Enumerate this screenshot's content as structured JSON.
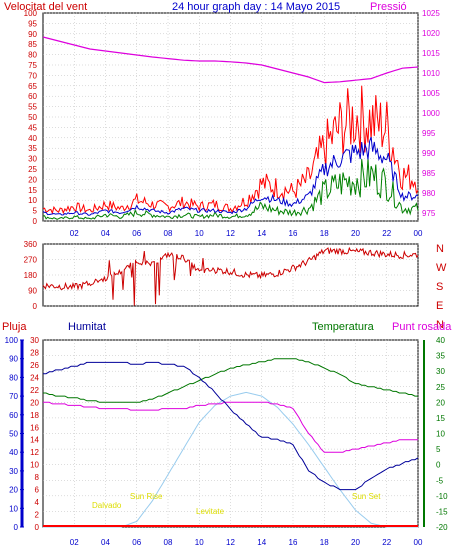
{
  "header": {
    "title": "24 hour graph day : 14 Mayo 2015",
    "top_left_label": "Velocitat del vent",
    "top_right_label": "Pressió"
  },
  "labels_bottom": {
    "pluja": "Pluja",
    "humitat": "Humitat",
    "temperatura": "Temperatura",
    "punt_rosada": "Punt rosada",
    "sun_events": [
      "Dalvado",
      "Sun Rise",
      "Levitate",
      "Sun Set"
    ]
  },
  "colors": {
    "wind_gust": "#ff0000",
    "wind_avg": "#0000cc",
    "wind_low": "#008000",
    "pressure": "#dd00dd",
    "direction": "#cc0000",
    "humidity": "#000099",
    "temperature": "#007700",
    "dewpoint": "#dd00dd",
    "solar": "#99ccee",
    "rain_axis": "#0000cc",
    "sun_label": "#dddd00",
    "grid": "#bbbbbb"
  },
  "chart_data": [
    {
      "type": "line",
      "name": "wind",
      "title": "Velocitat del vent",
      "x_ticks": [
        "02",
        "04",
        "06",
        "08",
        "10",
        "12",
        "14",
        "16",
        "18",
        "20",
        "22",
        "00"
      ],
      "left_ticks": [
        "0",
        "5",
        "10",
        "15",
        "20",
        "25",
        "30",
        "35",
        "40",
        "45",
        "50",
        "55",
        "60",
        "65",
        "70",
        "75",
        "80",
        "85",
        "90",
        "95",
        "100"
      ],
      "right_ticks": [
        "975",
        "980",
        "985",
        "990",
        "995",
        "1000",
        "1005",
        "1010",
        "1015",
        "1020",
        "1025"
      ],
      "ylim_left": [
        0,
        100
      ],
      "ylim_right": [
        973,
        1025
      ],
      "x_hours": [
        0,
        1,
        2,
        3,
        4,
        5,
        6,
        7,
        8,
        9,
        10,
        11,
        12,
        13,
        14,
        15,
        16,
        17,
        18,
        19,
        20,
        21,
        22,
        23,
        24
      ],
      "series": [
        {
          "key": "gust",
          "values": [
            6,
            5,
            7,
            5,
            8,
            6,
            10,
            8,
            7,
            9,
            7,
            8,
            6,
            10,
            18,
            16,
            14,
            20,
            35,
            45,
            50,
            48,
            45,
            22,
            20
          ]
        },
        {
          "key": "avg",
          "values": [
            4,
            3,
            4,
            3,
            5,
            4,
            7,
            5,
            4,
            6,
            5,
            5,
            4,
            6,
            12,
            10,
            8,
            12,
            25,
            30,
            33,
            35,
            30,
            12,
            12
          ]
        },
        {
          "key": "low",
          "values": [
            2,
            1,
            2,
            1,
            3,
            2,
            4,
            3,
            2,
            3,
            2,
            3,
            2,
            3,
            7,
            5,
            4,
            6,
            14,
            18,
            20,
            22,
            18,
            6,
            6
          ]
        },
        {
          "key": "pressure",
          "values": [
            1019,
            1018,
            1017,
            1016,
            1015.5,
            1015,
            1014.5,
            1014,
            1013.6,
            1013.2,
            1013,
            1013,
            1012.8,
            1012.5,
            1012,
            1011,
            1010,
            1009,
            1007.6,
            1007.8,
            1008.2,
            1008.6,
            1010,
            1011.2,
            1011.5
          ]
        }
      ]
    },
    {
      "type": "line",
      "name": "direction",
      "left_ticks": [
        "0",
        "90",
        "180",
        "270",
        "360"
      ],
      "right_labels": [
        "N",
        "W",
        "S",
        "E",
        "N"
      ],
      "ylim": [
        0,
        360
      ],
      "x_hours": [
        0,
        1,
        2,
        3,
        4,
        5,
        6,
        7,
        8,
        9,
        10,
        11,
        12,
        13,
        14,
        15,
        16,
        17,
        18,
        19,
        20,
        21,
        22,
        23,
        24
      ],
      "values": [
        120,
        115,
        110,
        130,
        160,
        200,
        260,
        240,
        300,
        280,
        200,
        210,
        200,
        180,
        175,
        190,
        220,
        260,
        320,
        320,
        315,
        310,
        300,
        295,
        300
      ]
    },
    {
      "type": "line",
      "name": "temp_hum",
      "x_ticks": [
        "02",
        "04",
        "06",
        "08",
        "10",
        "12",
        "14",
        "16",
        "18",
        "20",
        "22",
        "00"
      ],
      "rain_ticks": [
        "0",
        "10",
        "20",
        "30",
        "40",
        "50",
        "60",
        "70",
        "80",
        "90",
        "100"
      ],
      "humidity_ticks": [
        "0",
        "2",
        "4",
        "6",
        "8",
        "10",
        "12",
        "14",
        "16",
        "18",
        "20",
        "22",
        "24",
        "26",
        "28",
        "30"
      ],
      "temp_ticks": [
        "-20",
        "-15",
        "-10",
        "-5",
        "0",
        "5",
        "10",
        "15",
        "20",
        "25",
        "30",
        "35",
        "40"
      ],
      "ylim_humidity": [
        0,
        100
      ],
      "ylim_temp": [
        -20,
        40
      ],
      "x_hours": [
        0,
        1,
        2,
        3,
        4,
        5,
        6,
        7,
        8,
        9,
        10,
        11,
        12,
        13,
        14,
        15,
        16,
        17,
        18,
        19,
        20,
        21,
        22,
        23,
        24
      ],
      "series": [
        {
          "key": "humidity",
          "values": [
            82,
            84,
            86,
            88,
            88,
            88,
            87,
            88,
            87,
            86,
            80,
            72,
            63,
            55,
            48,
            47,
            44,
            30,
            24,
            20,
            20,
            26,
            31,
            34,
            37
          ]
        },
        {
          "key": "temperature",
          "values": [
            23,
            22,
            21.5,
            20.5,
            20,
            20,
            20,
            21,
            23,
            25,
            27,
            29,
            31,
            32,
            33,
            34,
            34,
            33,
            31,
            29,
            26,
            25,
            24,
            23,
            22
          ]
        },
        {
          "key": "dewpoint",
          "values": [
            20,
            19.5,
            19,
            18.5,
            18,
            18,
            17.5,
            17.5,
            18,
            18,
            19,
            19.5,
            20,
            20,
            20,
            19.5,
            18,
            10,
            4,
            4,
            5,
            6,
            7,
            8,
            8
          ]
        },
        {
          "key": "solar",
          "values": [
            0,
            0,
            0,
            0,
            0,
            0,
            3,
            14,
            28,
            42,
            56,
            65,
            70,
            72,
            70,
            64,
            55,
            44,
            32,
            20,
            9,
            2,
            0,
            0,
            0
          ]
        },
        {
          "key": "rain",
          "values": [
            0,
            0,
            0,
            0,
            0,
            0,
            0,
            0,
            0,
            0,
            0,
            0,
            0,
            0,
            0,
            0,
            0,
            0,
            0,
            0,
            0,
            0,
            0,
            0,
            0
          ]
        }
      ]
    }
  ]
}
